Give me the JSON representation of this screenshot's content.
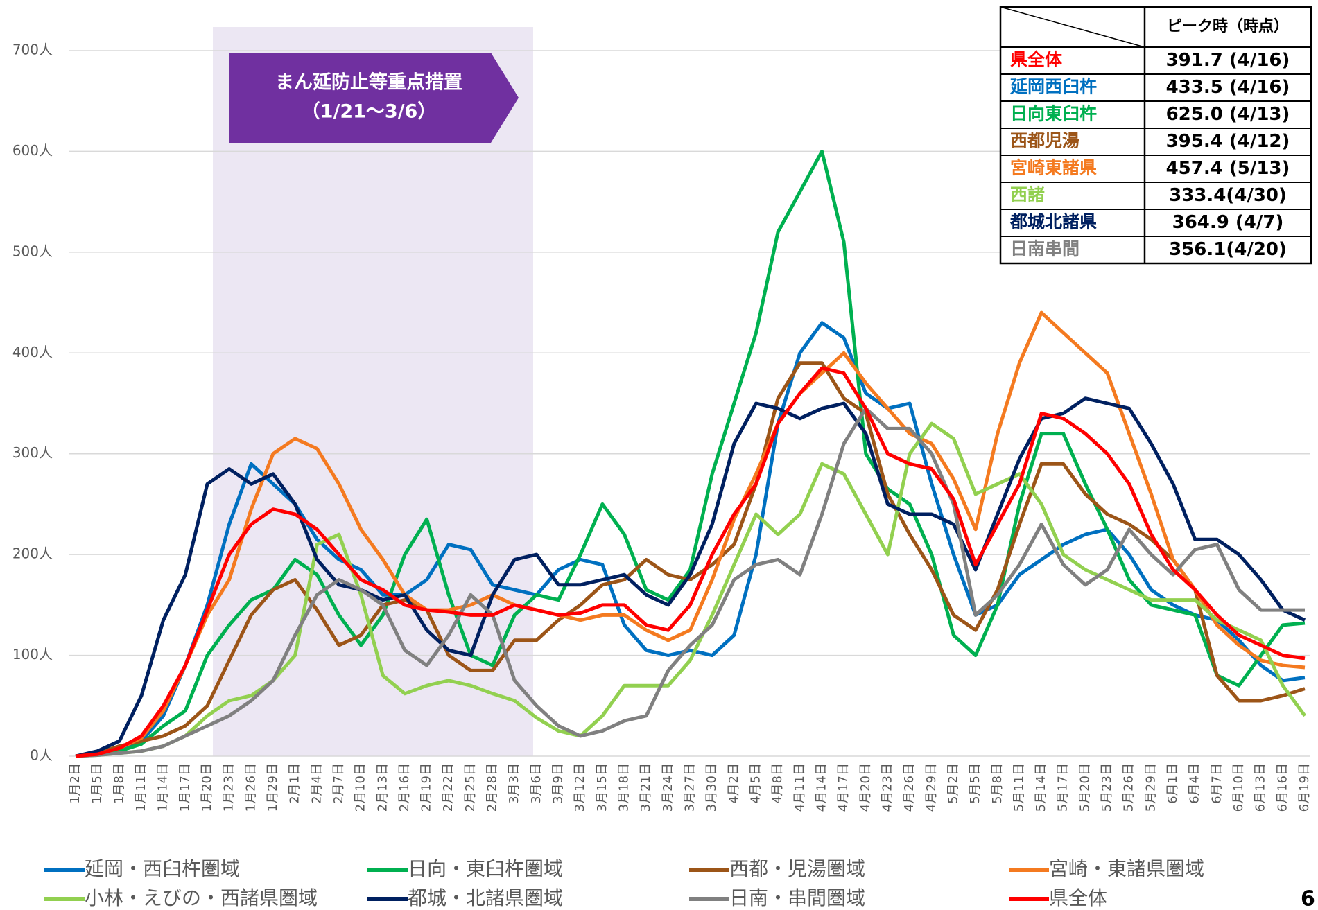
{
  "chart_data": {
    "type": "line",
    "annotation": "まん延防止等重点措置",
    "annotation_period": "（1/21〜3/6）",
    "categories": [
      "1月2日",
      "1月5日",
      "1月8日",
      "1月11日",
      "1月14日",
      "1月17日",
      "1月20日",
      "1月23日",
      "1月26日",
      "1月29日",
      "2月1日",
      "2月4日",
      "2月7日",
      "2月10日",
      "2月13日",
      "2月16日",
      "2月19日",
      "2月22日",
      "2月25日",
      "2月28日",
      "3月3日",
      "3月6日",
      "3月9日",
      "3月12日",
      "3月15日",
      "3月18日",
      "3月21日",
      "3月24日",
      "3月27日",
      "3月30日",
      "4月2日",
      "4月5日",
      "4月8日",
      "4月11日",
      "4月14日",
      "4月17日",
      "4月20日",
      "4月23日",
      "4月26日",
      "4月29日",
      "5月2日",
      "5月5日",
      "5月8日",
      "5月11日",
      "5月14日",
      "5月17日",
      "5月20日",
      "5月23日",
      "5月26日",
      "5月29日",
      "6月1日",
      "6月4日",
      "6月7日",
      "6月10日",
      "6月13日",
      "6月16日",
      "6月19日"
    ],
    "series": [
      {
        "name": "延岡・西臼杵圏域",
        "color": "#0070c0",
        "values": [
          0,
          2,
          5,
          15,
          40,
          90,
          150,
          230,
          290,
          270,
          250,
          215,
          195,
          185,
          160,
          160,
          175,
          210,
          205,
          170,
          165,
          160,
          185,
          195,
          190,
          130,
          105,
          100,
          105,
          100,
          120,
          200,
          330,
          400,
          430,
          415,
          360,
          345,
          350,
          270,
          200,
          140,
          150,
          180,
          195,
          210,
          220,
          225,
          200,
          165,
          150,
          140,
          135,
          115,
          90,
          75,
          78
        ]
      },
      {
        "name": "日向・東臼杵圏域",
        "color": "#00b050",
        "values": [
          0,
          2,
          5,
          12,
          30,
          45,
          100,
          130,
          155,
          165,
          195,
          180,
          140,
          110,
          140,
          200,
          235,
          160,
          100,
          90,
          140,
          160,
          155,
          200,
          250,
          220,
          165,
          155,
          185,
          280,
          350,
          420,
          520,
          560,
          600,
          510,
          300,
          265,
          250,
          200,
          120,
          100,
          150,
          250,
          320,
          320,
          270,
          225,
          175,
          150,
          145,
          140,
          80,
          70,
          100,
          130,
          132
        ]
      },
      {
        "name": "西都・児湯圏域",
        "color": "#9c5518",
        "values": [
          0,
          3,
          10,
          15,
          20,
          30,
          50,
          95,
          140,
          165,
          175,
          145,
          110,
          120,
          150,
          155,
          145,
          100,
          85,
          85,
          115,
          115,
          135,
          150,
          170,
          175,
          195,
          180,
          175,
          190,
          210,
          270,
          355,
          390,
          390,
          355,
          340,
          260,
          220,
          185,
          140,
          125,
          165,
          230,
          290,
          290,
          260,
          240,
          230,
          215,
          195,
          165,
          80,
          55,
          55,
          60,
          67
        ]
      },
      {
        "name": "宮崎・東諸県圏域",
        "color": "#f47a20",
        "values": [
          0,
          2,
          8,
          18,
          45,
          90,
          140,
          175,
          245,
          300,
          315,
          305,
          270,
          225,
          195,
          160,
          145,
          145,
          150,
          160,
          150,
          145,
          140,
          135,
          140,
          140,
          125,
          115,
          125,
          175,
          235,
          280,
          330,
          360,
          380,
          400,
          370,
          345,
          320,
          310,
          275,
          225,
          320,
          390,
          440,
          420,
          400,
          380,
          320,
          260,
          195,
          165,
          130,
          110,
          95,
          90,
          88
        ]
      },
      {
        "name": "小林・えびの・西諸県圏域",
        "color": "#92d050",
        "values": [
          0,
          1,
          3,
          5,
          10,
          20,
          40,
          55,
          60,
          75,
          100,
          210,
          220,
          160,
          80,
          62,
          70,
          75,
          70,
          62,
          55,
          38,
          25,
          20,
          40,
          70,
          70,
          70,
          95,
          140,
          190,
          240,
          220,
          240,
          290,
          280,
          240,
          200,
          300,
          330,
          315,
          260,
          270,
          280,
          250,
          200,
          185,
          175,
          165,
          155,
          155,
          155,
          135,
          125,
          115,
          70,
          40
        ]
      },
      {
        "name": "都城・北諸県圏域",
        "color": "#002060",
        "values": [
          0,
          5,
          15,
          60,
          135,
          180,
          270,
          285,
          270,
          280,
          250,
          195,
          170,
          165,
          155,
          160,
          125,
          105,
          100,
          160,
          195,
          200,
          170,
          170,
          175,
          180,
          160,
          150,
          180,
          230,
          310,
          350,
          345,
          335,
          345,
          350,
          320,
          250,
          240,
          240,
          230,
          185,
          240,
          295,
          335,
          340,
          355,
          350,
          345,
          310,
          270,
          215,
          215,
          200,
          175,
          145,
          135
        ]
      },
      {
        "name": "日南・串間圏域",
        "color": "#808080",
        "values": [
          0,
          1,
          3,
          5,
          10,
          20,
          30,
          40,
          55,
          75,
          120,
          160,
          175,
          165,
          150,
          105,
          90,
          120,
          160,
          140,
          75,
          50,
          30,
          20,
          25,
          35,
          40,
          85,
          110,
          130,
          175,
          190,
          195,
          180,
          240,
          310,
          345,
          325,
          325,
          300,
          250,
          140,
          160,
          190,
          230,
          190,
          170,
          185,
          225,
          200,
          180,
          205,
          210,
          165,
          145,
          145,
          145
        ]
      },
      {
        "name": "県全体",
        "color": "#ff0000",
        "values": [
          0,
          2,
          8,
          20,
          50,
          90,
          145,
          200,
          230,
          245,
          240,
          225,
          200,
          175,
          165,
          150,
          145,
          143,
          140,
          140,
          150,
          145,
          140,
          142,
          150,
          150,
          130,
          125,
          150,
          200,
          240,
          270,
          330,
          360,
          385,
          380,
          345,
          300,
          290,
          285,
          255,
          190,
          230,
          270,
          340,
          335,
          320,
          300,
          270,
          220,
          185,
          165,
          140,
          120,
          110,
          100,
          97
        ]
      }
    ],
    "ylim": [
      0,
      700
    ],
    "yticks": [
      {
        "value": 0,
        "label": "0人"
      },
      {
        "value": 100,
        "label": "100人"
      },
      {
        "value": 200,
        "label": "200人"
      },
      {
        "value": 300,
        "label": "300人"
      },
      {
        "value": 400,
        "label": "400人"
      },
      {
        "value": 500,
        "label": "500人"
      },
      {
        "value": 600,
        "label": "600人"
      },
      {
        "value": 700,
        "label": "700人"
      }
    ],
    "grid": true
  },
  "peak_table": {
    "header": "ピーク時（時点）",
    "rows": [
      {
        "name": "県全体",
        "value": "391.7 (4/16)",
        "color": "#ff0000"
      },
      {
        "name": "延岡西臼杵",
        "value": "433.5 (4/16)",
        "color": "#0070c0"
      },
      {
        "name": "日向東臼杵",
        "value": "625.0 (4/13)",
        "color": "#00b050"
      },
      {
        "name": "西都児湯",
        "value": "395.4 (4/12)",
        "color": "#9c5518"
      },
      {
        "name": "宮崎東諸県",
        "value": "457.4 (5/13)",
        "color": "#f47a20"
      },
      {
        "name": "西諸",
        "value": "333.4(4/30)",
        "color": "#92d050"
      },
      {
        "name": "都城北諸県",
        "value": "364.9 (4/7)",
        "color": "#002060"
      },
      {
        "name": "日南串間",
        "value": "356.1(4/20)",
        "color": "#808080"
      }
    ]
  },
  "page_number": "6"
}
